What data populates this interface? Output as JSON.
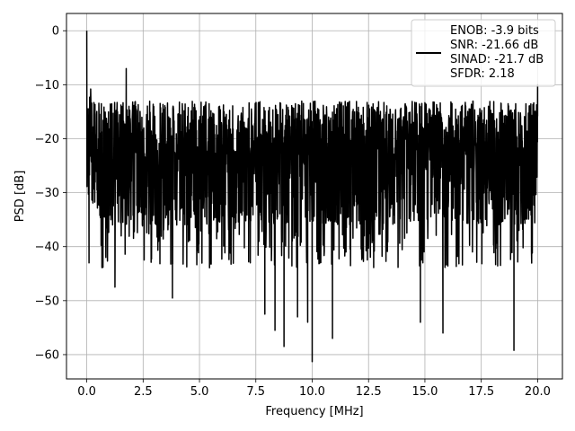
{
  "chart_data": {
    "type": "line",
    "title": "",
    "xlabel": "Frequency [MHz]",
    "ylabel": "PSD [dB]",
    "xlim": [
      -0.9,
      21.1
    ],
    "ylim": [
      -64.5,
      3.2
    ],
    "xticks": [
      0.0,
      2.5,
      5.0,
      7.5,
      10.0,
      12.5,
      15.0,
      17.5,
      20.0
    ],
    "xtick_labels": [
      "0.0",
      "2.5",
      "5.0",
      "7.5",
      "10.0",
      "12.5",
      "15.0",
      "17.5",
      "20.0"
    ],
    "yticks": [
      0,
      -10,
      -20,
      -30,
      -40,
      -50,
      -60
    ],
    "ytick_labels": [
      "0",
      "−10",
      "−20",
      "−30",
      "−40",
      "−50",
      "−60"
    ],
    "grid": true,
    "legend_position": "upper-right",
    "line_color": "#000000",
    "series": [
      {
        "name": "ENOB: -3.9 bits\nSNR: -21.66 dB\nSINAD: -21.7 dB\nSFDR: 2.18",
        "legend_lines": [
          "ENOB: -3.9 bits",
          "SNR: -21.66 dB",
          "SINAD: -21.7 dB",
          "SFDR: 2.18"
        ],
        "x_range": [
          0.0,
          20.0
        ],
        "peak": {
          "x": 0.0,
          "y": 0.0
        },
        "typical_band_db": [
          -35,
          -12
        ],
        "highlighted_points": [
          {
            "x": 0.05,
            "y": -17
          },
          {
            "x": 0.1,
            "y": -43
          },
          {
            "x": 1.25,
            "y": -47.5
          },
          {
            "x": 1.75,
            "y": -7
          },
          {
            "x": 3.8,
            "y": -49.5
          },
          {
            "x": 7.9,
            "y": -52.5
          },
          {
            "x": 8.35,
            "y": -55.5
          },
          {
            "x": 8.75,
            "y": -58.5
          },
          {
            "x": 9.35,
            "y": -53
          },
          {
            "x": 9.8,
            "y": -54
          },
          {
            "x": 10.0,
            "y": -61.3
          },
          {
            "x": 10.9,
            "y": -57
          },
          {
            "x": 14.8,
            "y": -54
          },
          {
            "x": 15.8,
            "y": -56
          },
          {
            "x": 18.95,
            "y": -59.2
          },
          {
            "x": 20.0,
            "y": -10
          }
        ]
      }
    ]
  }
}
